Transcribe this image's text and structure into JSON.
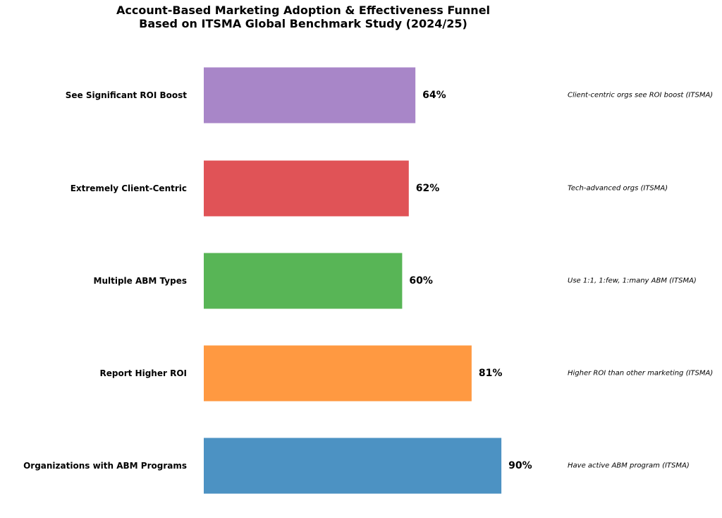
{
  "chart_data": {
    "type": "bar",
    "orientation": "horizontal",
    "title": "Account-Based Marketing Adoption & Effectiveness Funnel",
    "subtitle": "Based on ITSMA Global Benchmark Study (2024/25)",
    "xlabel": "",
    "ylabel": "",
    "xlim": [
      0,
      100
    ],
    "grid": false,
    "categories": [
      "Organizations with ABM Programs",
      "Report Higher ROI",
      "Multiple ABM Types",
      "Extremely Client-Centric",
      "See Significant ROI Boost"
    ],
    "values": [
      90,
      81,
      60,
      62,
      64
    ],
    "value_labels": [
      "90%",
      "81%",
      "60%",
      "62%",
      "64%"
    ],
    "annotations": [
      "Have active ABM program (ITSMA)",
      "Higher ROI than other marketing (ITSMA)",
      "Use 1:1, 1:few, 1:many ABM (ITSMA)",
      "Tech-advanced orgs (ITSMA)",
      "Client-centric orgs see ROI boost (ITSMA)"
    ],
    "colors": [
      "#4c92c3",
      "#ff9941",
      "#58b556",
      "#e05357",
      "#a886c8"
    ]
  }
}
